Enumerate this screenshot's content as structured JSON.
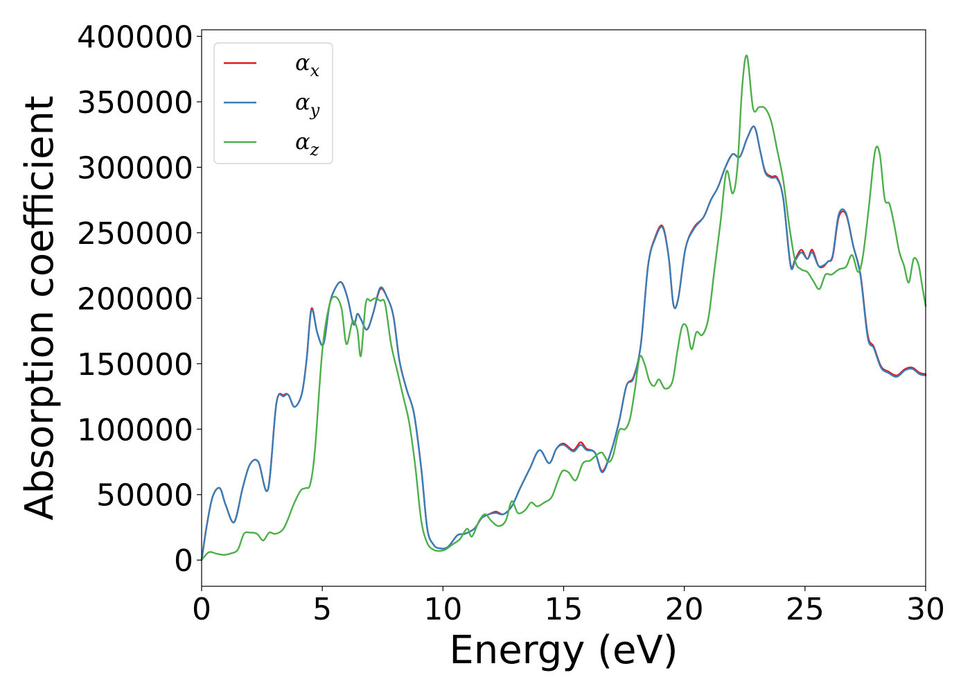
{
  "chart_data": {
    "type": "line",
    "title": "",
    "xlabel": "Energy (eV)",
    "ylabel": "Absorption coefficient",
    "xlim": [
      0,
      30
    ],
    "ylim": [
      -20000,
      405000
    ],
    "xticks": [
      0,
      5,
      10,
      15,
      20,
      25,
      30
    ],
    "yticks": [
      0,
      50000,
      100000,
      150000,
      200000,
      250000,
      300000,
      350000,
      400000
    ],
    "xtick_labels": [
      "0",
      "5",
      "10",
      "15",
      "20",
      "25",
      "30"
    ],
    "ytick_labels": [
      "0",
      "50000",
      "100000",
      "150000",
      "200000",
      "250000",
      "300000",
      "350000",
      "400000"
    ],
    "grid": false,
    "legend_position": "top-left",
    "series": [
      {
        "name": "α_x",
        "symbol": "α",
        "subscript": "x",
        "color": "#e41a1c",
        "x": [
          0,
          0.2,
          0.45,
          0.75,
          1.0,
          1.35,
          1.7,
          2.0,
          2.35,
          2.75,
          3.1,
          3.4,
          3.6,
          3.85,
          4.15,
          4.35,
          4.55,
          4.8,
          5.05,
          5.3,
          5.55,
          5.8,
          6.05,
          6.3,
          6.45,
          6.6,
          6.85,
          7.1,
          7.4,
          7.7,
          7.95,
          8.2,
          8.5,
          8.8,
          9.1,
          9.35,
          9.6,
          9.85,
          10.2,
          10.6,
          10.9,
          11.3,
          11.6,
          11.9,
          12.2,
          12.5,
          12.85,
          13.2,
          13.6,
          14.0,
          14.4,
          14.7,
          15.0,
          15.4,
          15.7,
          15.95,
          16.3,
          16.6,
          16.95,
          17.3,
          17.6,
          17.9,
          18.2,
          18.5,
          18.8,
          19.1,
          19.35,
          19.55,
          19.75,
          20.05,
          20.4,
          20.8,
          21.1,
          21.4,
          21.7,
          22.0,
          22.3,
          22.6,
          22.9,
          23.15,
          23.35,
          23.6,
          23.85,
          24.1,
          24.4,
          24.6,
          24.85,
          25.1,
          25.3,
          25.55,
          25.75,
          25.95,
          26.15,
          26.4,
          26.7,
          27.0,
          27.3,
          27.6,
          27.85,
          28.15,
          28.45,
          28.8,
          29.15,
          29.45,
          29.75,
          30.0
        ],
        "y": [
          0,
          25000,
          48000,
          55000,
          42000,
          29000,
          55000,
          73000,
          75000,
          54000,
          120000,
          126000,
          126000,
          117000,
          127000,
          153000,
          192000,
          173000,
          165000,
          195000,
          208000,
          212000,
          200000,
          180000,
          188000,
          184000,
          176000,
          188000,
          207000,
          200000,
          186000,
          152000,
          130000,
          112000,
          70000,
          24000,
          12000,
          9000,
          10000,
          19000,
          20000,
          24000,
          32000,
          35000,
          37000,
          35000,
          41000,
          55000,
          70000,
          84000,
          74000,
          85000,
          89000,
          84000,
          90000,
          85000,
          82000,
          68000,
          82000,
          106000,
          133000,
          140000,
          165000,
          225000,
          247000,
          255000,
          232000,
          195000,
          200000,
          238000,
          254000,
          262000,
          275000,
          285000,
          300000,
          310000,
          308000,
          322000,
          331000,
          312000,
          297000,
          293000,
          292000,
          276000,
          226000,
          230000,
          237000,
          230000,
          237000,
          225000,
          224000,
          228000,
          232000,
          262000,
          264000,
          240000,
          218000,
          172000,
          163000,
          148000,
          144000,
          141000,
          146000,
          147000,
          143000,
          142000
        ]
      },
      {
        "name": "α_y",
        "symbol": "α",
        "subscript": "y",
        "color": "#377eb8",
        "x": [
          0,
          0.2,
          0.45,
          0.75,
          1.0,
          1.35,
          1.7,
          2.0,
          2.35,
          2.75,
          3.1,
          3.4,
          3.6,
          3.85,
          4.15,
          4.35,
          4.55,
          4.8,
          5.05,
          5.3,
          5.55,
          5.8,
          6.05,
          6.3,
          6.45,
          6.6,
          6.85,
          7.1,
          7.4,
          7.7,
          7.95,
          8.2,
          8.5,
          8.8,
          9.1,
          9.35,
          9.6,
          9.85,
          10.2,
          10.6,
          10.9,
          11.3,
          11.6,
          11.9,
          12.2,
          12.5,
          12.85,
          13.2,
          13.6,
          14.0,
          14.4,
          14.7,
          15.0,
          15.4,
          15.7,
          15.95,
          16.3,
          16.6,
          16.95,
          17.3,
          17.6,
          17.9,
          18.2,
          18.5,
          18.8,
          19.1,
          19.35,
          19.55,
          19.75,
          20.05,
          20.4,
          20.8,
          21.1,
          21.4,
          21.7,
          22.0,
          22.3,
          22.6,
          22.9,
          23.15,
          23.35,
          23.6,
          23.85,
          24.1,
          24.4,
          24.6,
          24.85,
          25.1,
          25.3,
          25.55,
          25.75,
          25.95,
          26.15,
          26.4,
          26.7,
          27.0,
          27.3,
          27.6,
          27.85,
          28.15,
          28.45,
          28.8,
          29.15,
          29.45,
          29.75,
          30.0
        ],
        "y": [
          0,
          25000,
          48000,
          55000,
          42000,
          29000,
          55000,
          73000,
          75000,
          54000,
          120000,
          125000,
          126000,
          117000,
          127000,
          153000,
          191000,
          173000,
          165000,
          195000,
          208000,
          212000,
          200000,
          180000,
          188000,
          184000,
          176000,
          188000,
          208000,
          200000,
          186000,
          152000,
          130000,
          112000,
          70000,
          24000,
          12000,
          9000,
          10000,
          19000,
          20000,
          24000,
          32000,
          35000,
          36000,
          35000,
          41000,
          55000,
          70000,
          84000,
          74000,
          85000,
          88000,
          83000,
          88000,
          84000,
          82000,
          67000,
          82000,
          106000,
          133000,
          139000,
          165000,
          225000,
          246000,
          254000,
          232000,
          195000,
          200000,
          238000,
          253000,
          262000,
          275000,
          285000,
          300000,
          310000,
          308000,
          322000,
          331000,
          312000,
          296000,
          292000,
          291000,
          276000,
          225000,
          229000,
          235000,
          230000,
          235000,
          225000,
          225000,
          228000,
          233000,
          264000,
          265000,
          240000,
          217000,
          170000,
          162000,
          147000,
          143000,
          140000,
          145000,
          146000,
          142000,
          141000
        ]
      },
      {
        "name": "α_z",
        "symbol": "α",
        "subscript": "z",
        "color": "#4daf4a",
        "x": [
          0,
          0.3,
          0.6,
          0.9,
          1.2,
          1.5,
          1.75,
          2.0,
          2.3,
          2.55,
          2.8,
          3.05,
          3.35,
          3.55,
          3.8,
          4.1,
          4.3,
          4.5,
          4.7,
          5.0,
          5.3,
          5.55,
          5.8,
          6.0,
          6.25,
          6.45,
          6.6,
          6.8,
          7.0,
          7.2,
          7.4,
          7.6,
          7.85,
          8.1,
          8.35,
          8.6,
          8.85,
          9.1,
          9.35,
          9.6,
          9.85,
          10.1,
          10.4,
          10.7,
          11.0,
          11.2,
          11.5,
          11.75,
          12.0,
          12.3,
          12.6,
          12.85,
          13.1,
          13.4,
          13.65,
          13.9,
          14.2,
          14.5,
          14.75,
          14.95,
          15.2,
          15.5,
          15.8,
          16.1,
          16.35,
          16.6,
          16.85,
          17.05,
          17.3,
          17.55,
          17.75,
          17.95,
          18.15,
          18.35,
          18.55,
          18.75,
          18.95,
          19.2,
          19.5,
          19.7,
          19.9,
          20.1,
          20.3,
          20.5,
          20.75,
          21.0,
          21.25,
          21.5,
          21.75,
          22.0,
          22.2,
          22.4,
          22.6,
          22.85,
          23.1,
          23.35,
          23.6,
          23.85,
          24.1,
          24.35,
          24.6,
          24.85,
          25.1,
          25.35,
          25.6,
          25.85,
          26.1,
          26.4,
          26.7,
          26.95,
          27.2,
          27.4,
          27.65,
          27.9,
          28.1,
          28.3,
          28.5,
          28.7,
          28.9,
          29.1,
          29.3,
          29.5,
          29.7,
          29.85,
          30.0
        ],
        "y": [
          0,
          6000,
          5000,
          4000,
          5000,
          8000,
          20000,
          21000,
          20000,
          15000,
          21000,
          20000,
          23000,
          30000,
          42000,
          53000,
          55000,
          58000,
          85000,
          160000,
          195000,
          201000,
          192000,
          165000,
          182000,
          176000,
          156000,
          196000,
          198000,
          200000,
          198000,
          196000,
          165000,
          145000,
          125000,
          105000,
          72000,
          30000,
          13000,
          8000,
          7000,
          8000,
          12000,
          16000,
          24000,
          18000,
          30000,
          35000,
          30000,
          26000,
          30000,
          45000,
          36000,
          38000,
          44000,
          41000,
          44000,
          48000,
          60000,
          68000,
          67000,
          61000,
          74000,
          76000,
          80000,
          82000,
          75000,
          80000,
          99000,
          100000,
          108000,
          130000,
          155000,
          150000,
          137000,
          133000,
          138000,
          131000,
          136000,
          158000,
          178000,
          178000,
          161000,
          174000,
          172000,
          185000,
          222000,
          258000,
          297000,
          280000,
          300000,
          362000,
          385000,
          345000,
          346000,
          345000,
          335000,
          313000,
          290000,
          255000,
          228000,
          222000,
          220000,
          213000,
          207000,
          218000,
          218000,
          222000,
          224000,
          233000,
          220000,
          232000,
          270000,
          312000,
          310000,
          276000,
          272000,
          256000,
          236000,
          225000,
          212000,
          230000,
          226000,
          210000,
          194000
        ]
      }
    ]
  }
}
